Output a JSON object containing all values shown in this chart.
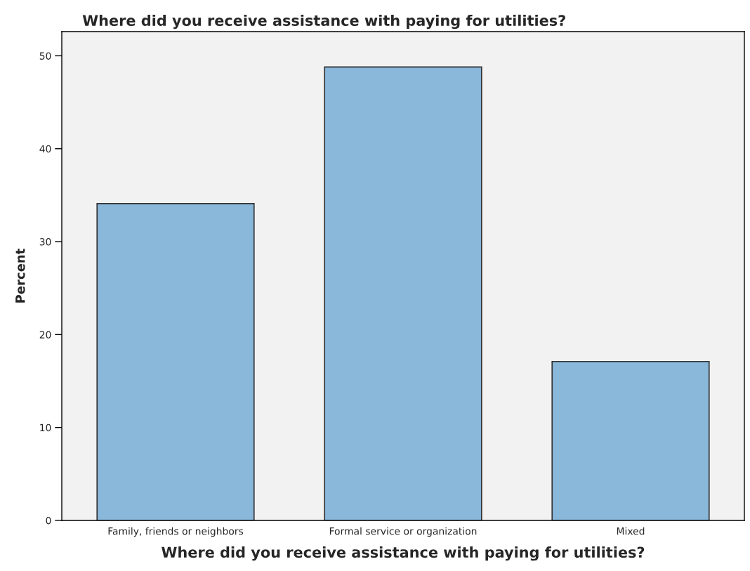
{
  "chart_data": {
    "type": "bar",
    "title": "Where did you receive assistance with paying for utilities?",
    "xlabel": "Where did you receive assistance with paying for utilities?",
    "ylabel": "Percent",
    "categories": [
      "Family, friends or neighbors",
      "Formal service or organization",
      "Mixed"
    ],
    "values": [
      34.1,
      48.8,
      17.1
    ],
    "color": "#8ab8db",
    "ylim": [
      0,
      52.6
    ],
    "yticks": [
      0,
      10,
      20,
      30,
      40,
      50
    ],
    "grid": false
  }
}
